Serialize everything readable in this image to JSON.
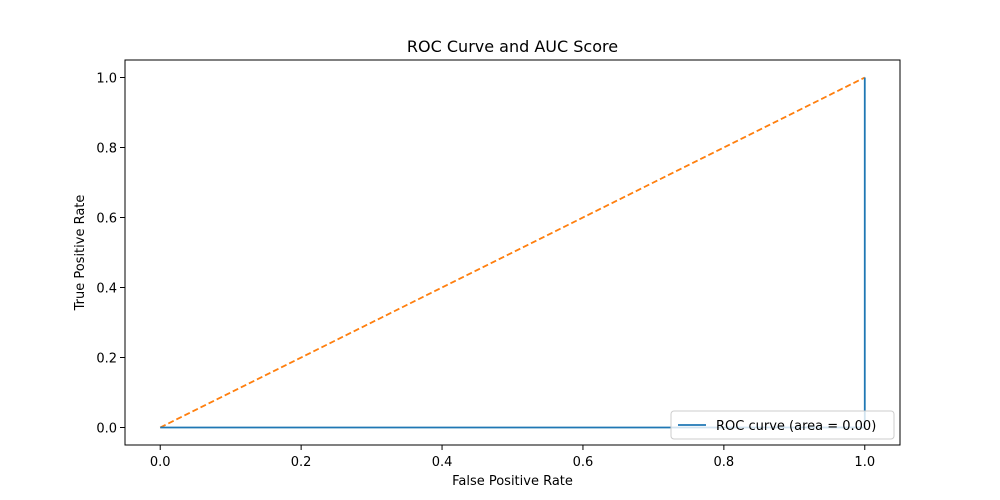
{
  "chart_data": {
    "type": "line",
    "title": "ROC Curve and AUC Score",
    "xlabel": "False Positive Rate",
    "ylabel": "True Positive Rate",
    "xlim": [
      -0.05,
      1.05
    ],
    "ylim": [
      -0.05,
      1.05
    ],
    "xticks": [
      "0.0",
      "0.2",
      "0.4",
      "0.6",
      "0.8",
      "1.0"
    ],
    "yticks": [
      "0.0",
      "0.2",
      "0.4",
      "0.6",
      "0.8",
      "1.0"
    ],
    "grid": false,
    "legend_position": "lower-right",
    "series": [
      {
        "name": "ROC curve (area = 0.00)",
        "x": [
          0,
          1,
          1
        ],
        "y": [
          0,
          0,
          1
        ],
        "color": "#1f77b4",
        "style": "solid"
      },
      {
        "x": [
          0,
          1
        ],
        "y": [
          0,
          1
        ],
        "color": "#ff7f0e",
        "style": "dashed"
      }
    ]
  }
}
